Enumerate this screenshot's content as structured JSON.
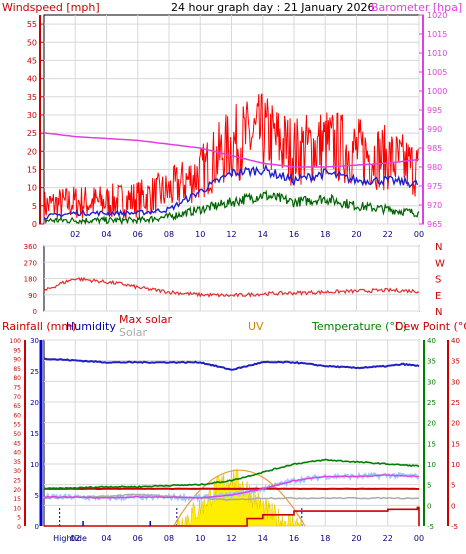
{
  "header": {
    "title": "24 hour graph day : 21 January 2026",
    "left_label": "Windspeed [mph]",
    "right_label": "Barometer [hpa]"
  },
  "colors": {
    "wind": "#ff0000",
    "gust": "#e01010",
    "avg": "#2020d0",
    "min": "#006400",
    "baro": "#e040e0",
    "dir": "#e03030",
    "hum": "#2020c0",
    "temp": "#008000",
    "dew": "#d00000",
    "solar": "#aaaaaa",
    "maxsolar": "#cc0000",
    "uv": "#cc8800"
  },
  "chart_data": [
    {
      "type": "line",
      "name": "wind-barometer",
      "x_ticks": [
        "02",
        "04",
        "06",
        "08",
        "10",
        "12",
        "14",
        "16",
        "18",
        "20",
        "22",
        "00"
      ],
      "y_left_ticks": [
        "0",
        "5",
        "10",
        "15",
        "20",
        "25",
        "30",
        "35",
        "40",
        "45",
        "50",
        "55"
      ],
      "y_right_ticks": [
        "965",
        "970",
        "975",
        "980",
        "985",
        "990",
        "995",
        "1000",
        "1005",
        "1010",
        "1015",
        "1020"
      ],
      "ylim_left": [
        0,
        57.5
      ],
      "ylim_right": [
        965,
        1020
      ],
      "barometer": {
        "x": [
          0,
          2,
          4,
          6,
          8,
          10,
          12,
          13,
          14,
          16,
          18,
          20,
          22,
          24
        ],
        "y": [
          989,
          988,
          987.5,
          987,
          986,
          985,
          983,
          982,
          981,
          980,
          980,
          980.5,
          981,
          982
        ]
      },
      "gust_envelope": {
        "x": [
          0,
          2,
          4,
          6,
          8,
          10,
          12,
          14,
          16,
          18,
          20,
          22,
          24
        ],
        "y": [
          5,
          6,
          6,
          7,
          9,
          14,
          22,
          25,
          20,
          22,
          20,
          18,
          15
        ]
      },
      "avg_envelope": {
        "x": [
          0,
          2,
          4,
          6,
          8,
          10,
          12,
          14,
          16,
          18,
          20,
          22,
          24
        ],
        "y": [
          2,
          3,
          3,
          3,
          4,
          9,
          14,
          15,
          12,
          14,
          12,
          12,
          11
        ]
      },
      "min_envelope": {
        "x": [
          0,
          2,
          4,
          6,
          8,
          10,
          12,
          14,
          16,
          18,
          20,
          22,
          24
        ],
        "y": [
          1,
          1,
          1,
          1,
          2,
          4,
          6,
          8,
          6,
          7,
          5,
          4,
          3
        ]
      }
    },
    {
      "type": "line",
      "name": "wind-direction",
      "y_left_ticks": [
        "360",
        "270",
        "180",
        "90",
        "0"
      ],
      "y_right_ticks": [
        "N",
        "W",
        "S",
        "E",
        "N"
      ],
      "ylim": [
        0,
        360
      ],
      "series": [
        {
          "x": [
            0,
            1,
            2,
            3,
            4,
            5,
            6,
            8,
            10,
            12,
            14,
            16,
            18,
            20,
            22,
            24
          ],
          "y": [
            110,
            150,
            180,
            170,
            160,
            150,
            130,
            105,
            90,
            85,
            95,
            100,
            105,
            110,
            115,
            110
          ]
        }
      ]
    },
    {
      "type": "line",
      "name": "weather",
      "labels": {
        "rain": "Rainfall (mm)",
        "hum": "Humidity",
        "maxsolar": "Max solar",
        "solar": "Solar",
        "uv": "UV",
        "temp": "Temperature (°C)",
        "dew": "Dew Point (°C)"
      },
      "x_ticks": [
        "Hightide",
        "02",
        "04",
        "06",
        "08",
        "10",
        "12",
        "14",
        "16",
        "18",
        "20",
        "22",
        "00"
      ],
      "y_rain_ticks": [
        "0",
        "5",
        "10",
        "15",
        "20",
        "25",
        "30",
        "35",
        "40",
        "45",
        "50",
        "55",
        "60",
        "65",
        "70",
        "75",
        "80",
        "85",
        "90",
        "95",
        "100"
      ],
      "y_uv_ticks": [
        "0",
        "5",
        "10",
        "15",
        "20",
        "25",
        "30"
      ],
      "y_temp_ticks": [
        "-5",
        "0",
        "5",
        "10",
        "15",
        "20",
        "25",
        "30",
        "35",
        "40"
      ],
      "rain_ylim": [
        0,
        100
      ],
      "temp_ylim": [
        -5,
        40
      ],
      "humidity": {
        "x": [
          0,
          4,
          8,
          10,
          11,
          12,
          14,
          16,
          18,
          20,
          22,
          23,
          24
        ],
        "y": [
          90,
          88,
          88,
          88,
          86,
          84,
          88,
          88,
          86,
          85,
          86,
          87,
          86
        ]
      },
      "temperature": {
        "x": [
          0,
          2,
          4,
          6,
          8,
          10,
          12,
          14,
          16,
          18,
          20,
          22,
          24
        ],
        "y": [
          4,
          4.2,
          4.5,
          4.5,
          4.8,
          5,
          6,
          8,
          10,
          11,
          10.5,
          10,
          9.5
        ]
      },
      "dew_point": {
        "x": [
          0,
          2,
          4,
          6,
          8,
          10,
          12,
          14,
          16,
          18,
          20,
          22,
          24
        ],
        "y": [
          2,
          2,
          1.8,
          2,
          2,
          1.8,
          2.5,
          4,
          6,
          7,
          7,
          7.3,
          7
        ]
      },
      "solar": {
        "x": [
          0,
          4,
          6,
          8,
          10,
          12,
          14,
          16,
          18,
          20,
          22,
          24
        ],
        "y": [
          15,
          16,
          17,
          16,
          15,
          14,
          15,
          15,
          15,
          15,
          15,
          15
        ]
      },
      "max_solar": {
        "x": [
          0,
          4,
          8,
          10,
          12,
          14,
          16,
          18,
          20,
          22,
          24
        ],
        "y": [
          20,
          20,
          20,
          20,
          20,
          20,
          20,
          20,
          20,
          20,
          20
        ]
      },
      "rain": {
        "x": [
          0,
          13,
          14,
          16,
          17,
          22,
          23.9,
          24
        ],
        "y": [
          0,
          4,
          6,
          8,
          8,
          9,
          10,
          0
        ]
      },
      "uv": {
        "x": [
          8.5,
          10,
          11,
          12,
          13,
          14,
          15,
          16.5
        ],
        "y": [
          0,
          3,
          6,
          8,
          6,
          3,
          1,
          0
        ]
      }
    }
  ]
}
